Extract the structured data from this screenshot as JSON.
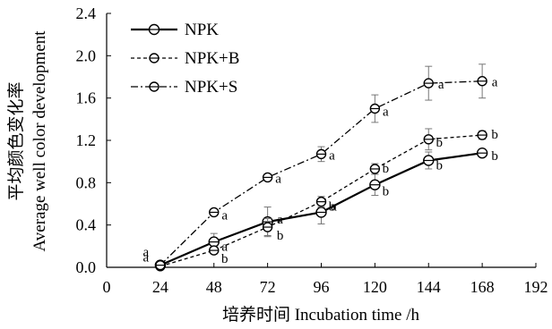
{
  "chart_data": {
    "type": "line",
    "xlabel": "培养时间  Incubation time /h",
    "ylabel_line1": "平均颜色变化率",
    "ylabel_line2": "Average well color development",
    "xlim": [
      0,
      192
    ],
    "ylim": [
      0,
      2.4
    ],
    "x_ticks": [
      0,
      24,
      48,
      72,
      96,
      120,
      144,
      168,
      192
    ],
    "y_ticks": [
      "0.0",
      "0.4",
      "0.8",
      "1.2",
      "1.6",
      "2.0",
      "2.4"
    ],
    "legend_position": "top-left",
    "grid": false,
    "series": [
      {
        "name": "NPK",
        "dash": "solid",
        "x": [
          24,
          48,
          72,
          96,
          120,
          144,
          168
        ],
        "y": [
          0.02,
          0.24,
          0.43,
          0.52,
          0.78,
          1.01,
          1.08
        ],
        "err": [
          0.01,
          0.08,
          0.14,
          0.11,
          0.1,
          0.08,
          0.03
        ],
        "labels": [
          "a",
          "a",
          "a",
          "a",
          "b",
          "b",
          "b"
        ]
      },
      {
        "name": "NPK+B",
        "dash": "dashed",
        "x": [
          24,
          48,
          72,
          96,
          120,
          144,
          168
        ],
        "y": [
          0.01,
          0.16,
          0.38,
          0.62,
          0.93,
          1.21,
          1.25
        ],
        "err": [
          0.01,
          0.03,
          0.08,
          0.05,
          0.05,
          0.1,
          0.04
        ],
        "labels": [
          "a",
          "b",
          "b",
          "b",
          "b",
          "b",
          "b"
        ]
      },
      {
        "name": "NPK+S",
        "dash": "dashdot",
        "x": [
          24,
          48,
          72,
          96,
          120,
          144,
          168
        ],
        "y": [
          0.02,
          0.52,
          0.85,
          1.07,
          1.5,
          1.74,
          1.76
        ],
        "err": [
          0.01,
          0.03,
          0.03,
          0.07,
          0.13,
          0.16,
          0.16
        ],
        "labels": [
          "a",
          "a",
          "a",
          "a",
          "a",
          "a",
          "a"
        ]
      }
    ]
  }
}
